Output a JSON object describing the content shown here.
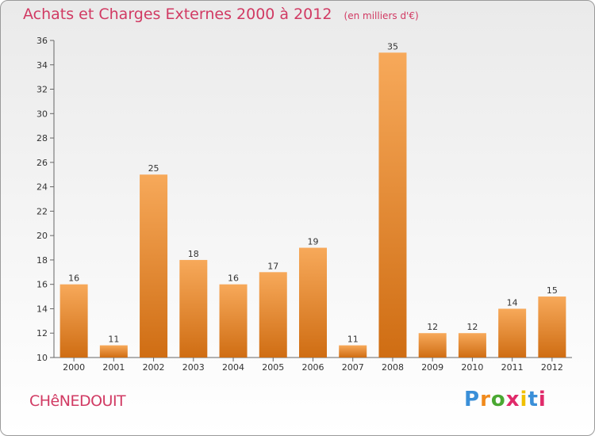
{
  "header": {
    "title": "Achats et Charges Externes 2000 à 2012",
    "unit": "(en milliers d'€)"
  },
  "commune": "CHêNEDOUIT",
  "logo": {
    "text": "Proxiti",
    "colors": [
      "#3a8fd8",
      "#f08a1c",
      "#4aa832",
      "#e02a6a",
      "#f0c000",
      "#3a8fd8",
      "#e02a6a"
    ]
  },
  "colors": {
    "bar_top": "#f7a95a",
    "bar_bottom": "#cf6d13",
    "accent": "#d13a63"
  },
  "chart_data": {
    "type": "bar",
    "categories": [
      "2000",
      "2001",
      "2002",
      "2003",
      "2004",
      "2005",
      "2006",
      "2007",
      "2008",
      "2009",
      "2010",
      "2011",
      "2012"
    ],
    "values": [
      16,
      11,
      25,
      18,
      16,
      17,
      19,
      11,
      35,
      12,
      12,
      14,
      15
    ],
    "ylim": [
      10,
      36
    ],
    "yticks": [
      10,
      12,
      14,
      16,
      18,
      20,
      22,
      24,
      26,
      28,
      30,
      32,
      34,
      36
    ],
    "grid": false
  }
}
